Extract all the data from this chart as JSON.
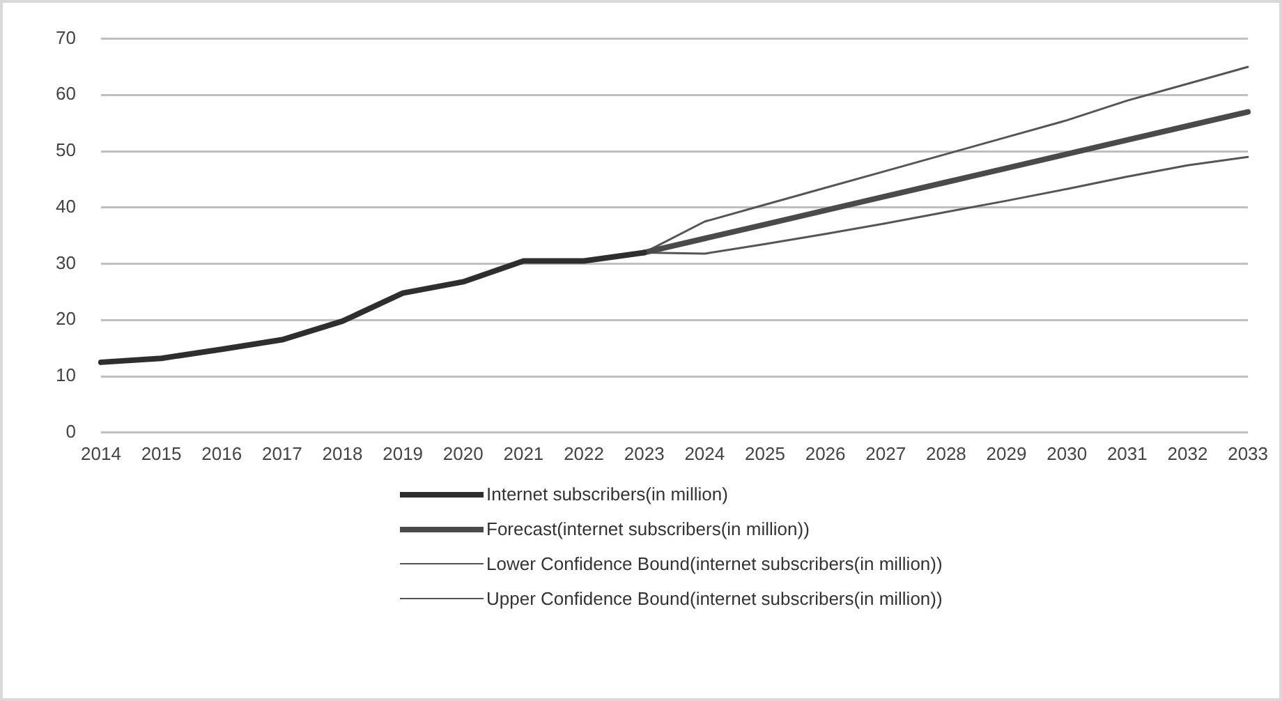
{
  "chart_data": {
    "type": "line",
    "categories": [
      "2014",
      "2015",
      "2016",
      "2017",
      "2018",
      "2019",
      "2020",
      "2021",
      "2022",
      "2023",
      "2024",
      "2025",
      "2026",
      "2027",
      "2028",
      "2029",
      "2030",
      "2031",
      "2032",
      "2033"
    ],
    "series": [
      {
        "name": "Internet subscribers(in million)",
        "color": "#2e2e2e",
        "values": [
          12.5,
          13.2,
          14.8,
          16.5,
          19.8,
          24.8,
          26.8,
          30.5,
          30.5,
          32,
          null,
          null,
          null,
          null,
          null,
          null,
          null,
          null,
          null,
          null
        ]
      },
      {
        "name": "Forecast(internet subscribers(in million))",
        "color": "#4a4a4a",
        "values": [
          null,
          null,
          null,
          null,
          null,
          null,
          null,
          null,
          null,
          32,
          34.5,
          37,
          39.5,
          42,
          44.5,
          47,
          49.5,
          52,
          54.5,
          57
        ]
      },
      {
        "name": "Lower Confidence Bound(internet subscribers(in million))",
        "color": "#555555",
        "values": [
          null,
          null,
          null,
          null,
          null,
          null,
          null,
          null,
          null,
          32,
          31.8,
          33.5,
          35.3,
          37.2,
          39.2,
          41.2,
          43.3,
          45.5,
          47.5,
          49
        ]
      },
      {
        "name": "Upper Confidence Bound(internet subscribers(in million))",
        "color": "#555555",
        "values": [
          null,
          null,
          null,
          null,
          null,
          null,
          null,
          null,
          null,
          32,
          37.5,
          40.5,
          43.5,
          46.5,
          49.5,
          52.5,
          55.5,
          59,
          62,
          65
        ]
      }
    ],
    "ylim": [
      0,
      70
    ],
    "yticks": [
      0,
      10,
      20,
      30,
      40,
      50,
      60,
      70
    ],
    "grid": "y",
    "legend": "bottom",
    "marker": "none",
    "line_style": "solid"
  }
}
